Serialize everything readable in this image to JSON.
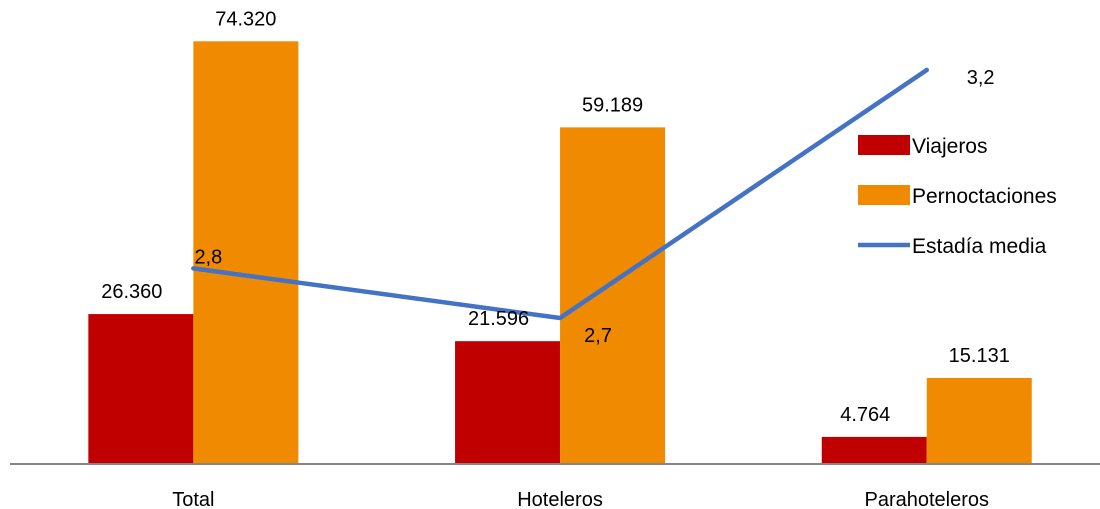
{
  "chart_data": {
    "type": "bar",
    "categories": [
      "Total",
      "Hoteleros",
      "Parahoteleros"
    ],
    "series": [
      {
        "name": "Viajeros",
        "kind": "bar",
        "axis": "primary",
        "color": "#c00000",
        "values": [
          26360,
          21596,
          4764
        ],
        "labels": [
          "26.360",
          "21.596",
          "4.764"
        ]
      },
      {
        "name": "Pernoctaciones",
        "kind": "bar",
        "axis": "primary",
        "color": "#f08a00",
        "values": [
          74320,
          59189,
          15131
        ],
        "labels": [
          "74.320",
          "59.189",
          "15.131"
        ]
      },
      {
        "name": "Estadía media",
        "kind": "line",
        "axis": "secondary",
        "color": "#4472c4",
        "values": [
          2.8,
          2.7,
          3.2
        ],
        "labels": [
          "2,8",
          "2,7",
          "3,2"
        ]
      }
    ],
    "title": "",
    "xlabel": "",
    "ylabel": "",
    "ylim": [
      0,
      80000
    ],
    "y2lim": [
      2.0,
      3.3
    ],
    "grid": false,
    "legend_position": "right"
  }
}
